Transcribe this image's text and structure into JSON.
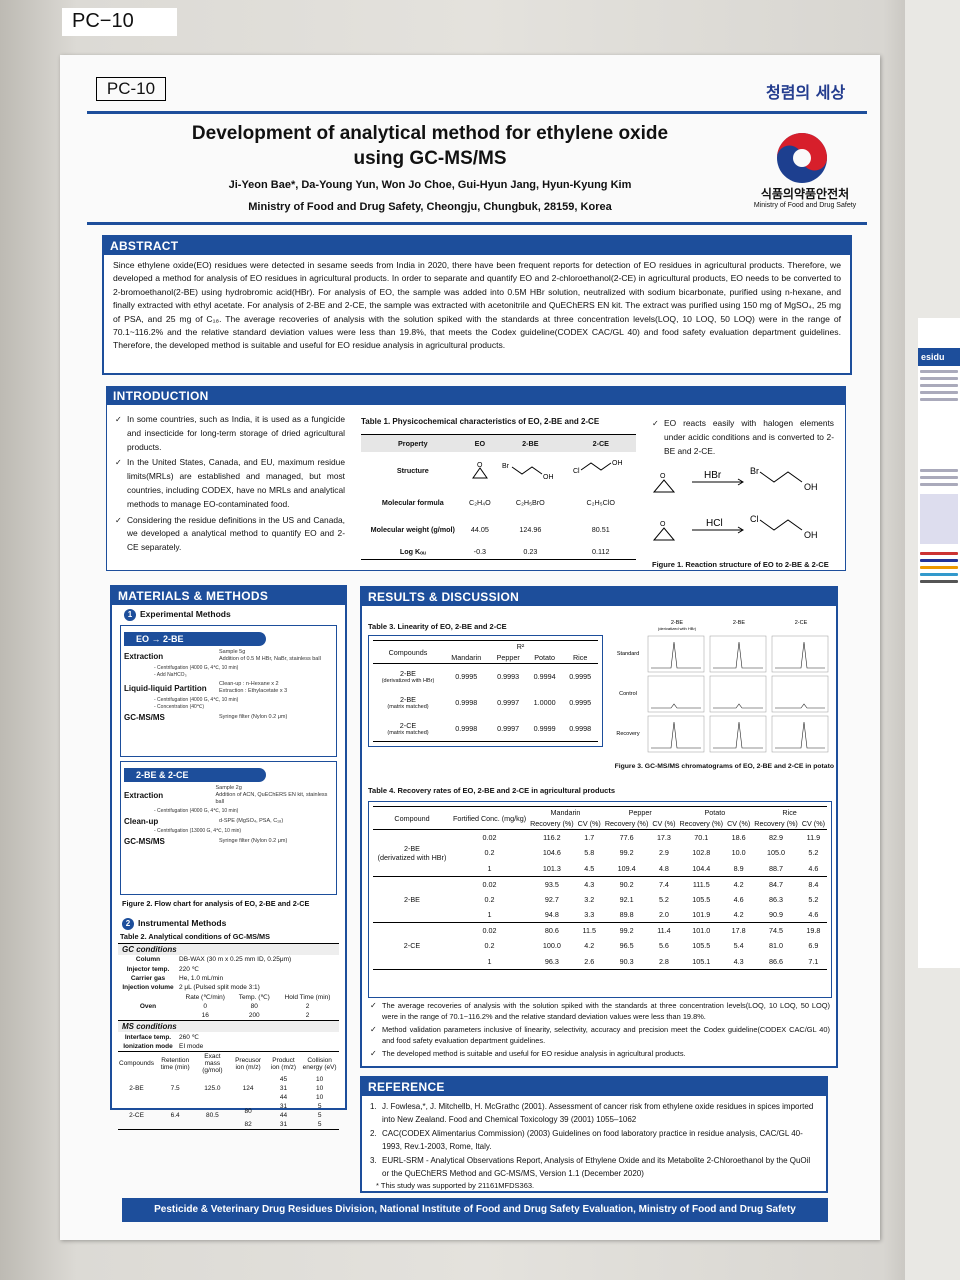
{
  "board_label": "PC−10",
  "poster": {
    "code": "PC-10",
    "brand": "청렴의 세상",
    "title_line1": "Development of analytical method for ethylene oxide",
    "title_line2": "using GC-MS/MS",
    "authors": "Ji-Yeon Bae*, Da-Young Yun, Won Jo Choe, Gui-Hyun Jang, Hyun-Kyung Kim",
    "affiliation": "Ministry of Food and Drug Safety, Cheongju, Chungbuk, 28159, Korea",
    "ministry_kr": "식품의약품안전처",
    "ministry_en": "Ministry of Food and Drug Safety"
  },
  "abstract": {
    "heading": "ABSTRACT",
    "text": "Since ethylene oxide(EO) residues were detected in sesame seeds from India in 2020, there have been frequent reports for detection of EO residues in agricultural products. Therefore, we developed a method for analysis of EO residues in agricultural products. In order to separate and quantify EO and 2-chloroethanol(2-CE) in agricultural products, EO needs to be converted to 2-bromoethanol(2-BE) using hydrobromic acid(HBr). For analysis of EO, the sample was added into 0.5M HBr solution, neutralized with sodium bicarbonate, purified using n-hexane, and finally extracted with ethyl acetate. For analysis of 2-BE and 2-CE, the sample was extracted with acetonitrile and QuEChERS EN kit. The extract was purified using 150 mg of MgSO₄, 25 mg of PSA, and 25 mg of C₁₈. The average recoveries of analysis with the solution spiked with the standards at three concentration levels(LOQ, 10 LOQ, 50 LOQ) were in the range of 70.1~116.2% and the relative standard deviation values were less than 19.8%, that meets the Codex guideline(CODEX CAC/GL 40) and food safety evaluation department guidelines. Therefore, the developed method is suitable and useful for EO residue analysis in agricultural products."
  },
  "introduction": {
    "heading": "INTRODUCTION",
    "bullets": [
      "In some countries, such as India, it is used as a fungicide and insecticide for long-term storage of dried agricultural products.",
      "In the United States, Canada, and EU, maximum residue limits(MRLs) are established and managed, but most countries, including CODEX, have no MRLs and analytical methods to manage EO-contaminated food.",
      "Considering the residue definitions in the US and Canada, we developed a analytical method to quantify EO and 2-CE separately."
    ],
    "table1_caption": "Table 1. Physicochemical characteristics of EO, 2-BE and 2-CE",
    "table1": {
      "headers": [
        "Property",
        "EO",
        "2-BE",
        "2-CE"
      ],
      "structure_label": "Structure",
      "rows": [
        [
          "Molecular formula",
          "C₂H₄O",
          "C₂H₅BrO",
          "C₂H₅ClO"
        ],
        [
          "Molecular weight (g/mol)",
          "44.05",
          "124.96",
          "80.51"
        ],
        [
          "Log Kₒᵤ",
          "-0.3",
          "0.23",
          "0.112"
        ]
      ]
    },
    "right_bullet": "EO reacts easily with halogen elements under acidic conditions and is converted to 2-BE and 2-CE.",
    "reagent_hbr": "HBr",
    "reagent_hcl": "HCl",
    "fig1_caption": "Figure 1. Reaction structure of EO to 2-BE & 2-CE"
  },
  "methods": {
    "heading": "MATERIALS & METHODS",
    "exp_heading": "Experimental Methods",
    "eo_pill": "EO → 2-BE",
    "eo_steps": [
      {
        "label": "Extraction",
        "detail": "Sample 5g / Addition of 0.5 M HBr, NaBr, stainless ball"
      },
      {
        "label": "",
        "detail": "Centrifugation (4000 G, 4℃, 10 min) / Add NaHCO₃"
      },
      {
        "label": "Liquid-liquid Partition",
        "detail": "Clean-up : n-Hexane x 2 / Extraction : Ethylacetate x 3"
      },
      {
        "label": "",
        "detail": "Centrifugation (4000 G, 4℃, 10 min) / Concentration (40℃)"
      },
      {
        "label": "GC-MS/MS",
        "detail": "Syringe filter (Nylon 0.2 μm)"
      }
    ],
    "ce_pill": "2-BE & 2-CE",
    "ce_steps": [
      {
        "label": "Extraction",
        "detail": "Sample 2g / Addition of ACN, QuEChERS EN kit, stainless ball"
      },
      {
        "label": "",
        "detail": "Centrifugation (4000 G, 4℃, 10 min)"
      },
      {
        "label": "Clean-up",
        "detail": "d-SPE (MgSO₄, PSA, C₁₈)"
      },
      {
        "label": "",
        "detail": "Centrifugation (13000 G, 4℃, 10 min)"
      },
      {
        "label": "GC-MS/MS",
        "detail": "Syringe filter (Nylon 0.2 μm)"
      }
    ],
    "fig2_caption": "Figure 2. Flow chart for analysis of EO, 2-BE and 2-CE",
    "inst_heading": "Instrumental Methods",
    "table2_caption": "Table 2. Analytical conditions of GC-MS/MS",
    "gc_heading": "GC conditions",
    "gc_rows": [
      [
        "Column",
        "DB-WAX (30 m x 0.25 mm ID, 0.25μm)"
      ],
      [
        "Injector temp.",
        "220 ℃"
      ],
      [
        "Carrier gas",
        "He, 1.0 mL/min"
      ],
      [
        "Injection volume",
        "2 μL (Pulsed split mode 3:1)"
      ]
    ],
    "oven_label": "Oven",
    "oven_headers": [
      "Rate (℃/min)",
      "Temp. (℃)",
      "Hold Time (min)"
    ],
    "oven_rows": [
      [
        "0",
        "80",
        "2"
      ],
      [
        "16",
        "200",
        "2"
      ]
    ],
    "ms_heading": "MS conditions",
    "ms_rows": [
      [
        "Interface temp.",
        "260 ℃"
      ],
      [
        "Ionization mode",
        "EI mode"
      ]
    ],
    "ms_headers": [
      "Compounds",
      "Retention time (min)",
      "Exact mass (g/mol)",
      "Precusor ion (m/z)",
      "Product ion (m/z)",
      "Collision energy (eV)"
    ],
    "ms_compounds": [
      {
        "name": "2-BE",
        "rt": "7.5",
        "mass": "125.0",
        "pre": "124",
        "products": [
          [
            "45",
            "10"
          ],
          [
            "31",
            "10"
          ],
          [
            "44",
            "10"
          ]
        ]
      },
      {
        "name": "2-CE",
        "rt": "6.4",
        "mass": "80.5",
        "pre": "80",
        "products": [
          [
            "31",
            "5"
          ],
          [
            "44",
            "5"
          ]
        ],
        "pre2": "82",
        "products2": [
          [
            "31",
            "5"
          ]
        ]
      }
    ]
  },
  "results": {
    "heading": "RESULTS & DISCUSSION",
    "table3_caption": "Table 3. Linearity of EO, 2-BE and 2-CE",
    "table3_r2": "R²",
    "table3_headers": [
      "Compounds",
      "Mandarin",
      "Pepper",
      "Potato",
      "Rice"
    ],
    "table3_rows": [
      [
        "2-BE",
        "(derivatized with HBr)",
        "0.9995",
        "0.9993",
        "0.9994",
        "0.9995"
      ],
      [
        "2-BE",
        "(matrix matched)",
        "0.9998",
        "0.9997",
        "1.0000",
        "0.9995"
      ],
      [
        "2-CE",
        "(matrix matched)",
        "0.9998",
        "0.9997",
        "0.9999",
        "0.9998"
      ]
    ],
    "fig3_cols": [
      "2-BE\n(derivatized with HBr)",
      "2-BE",
      "2-CE"
    ],
    "fig3_rows": [
      "Standard",
      "Control",
      "Recovery"
    ],
    "fig3_caption": "Figure 3. GC-MS/MS chromatograms of EO, 2-BE and 2-CE in potato",
    "table4_caption": "Table 4. Recovery rates of EO, 2-BE and 2-CE in agricultural products",
    "table4_crops": [
      "Mandarin",
      "Pepper",
      "Potato",
      "Rice"
    ],
    "table4_compound": "Compound",
    "table4_conc": "Fortified Conc. (mg/kg)",
    "table4_rec": "Recovery (%)",
    "table4_cv": "CV (%)",
    "table4_groups": [
      {
        "name": "2-BE",
        "sub": "(derivatized with HBr)",
        "rows": [
          [
            "0.02",
            "116.2",
            "1.7",
            "77.6",
            "17.3",
            "70.1",
            "18.6",
            "82.9",
            "11.9"
          ],
          [
            "0.2",
            "104.6",
            "5.8",
            "99.2",
            "2.9",
            "102.8",
            "10.0",
            "105.0",
            "5.2"
          ],
          [
            "1",
            "101.3",
            "4.5",
            "109.4",
            "4.8",
            "104.4",
            "8.9",
            "88.7",
            "4.6"
          ]
        ]
      },
      {
        "name": "2-BE",
        "sub": "",
        "rows": [
          [
            "0.02",
            "93.5",
            "4.3",
            "90.2",
            "7.4",
            "111.5",
            "4.2",
            "84.7",
            "8.4"
          ],
          [
            "0.2",
            "92.7",
            "3.2",
            "92.1",
            "5.2",
            "105.5",
            "4.6",
            "86.3",
            "5.2"
          ],
          [
            "1",
            "94.8",
            "3.3",
            "89.8",
            "2.0",
            "101.9",
            "4.2",
            "90.9",
            "4.6"
          ]
        ]
      },
      {
        "name": "2-CE",
        "sub": "",
        "rows": [
          [
            "0.02",
            "80.6",
            "11.5",
            "99.2",
            "11.4",
            "101.0",
            "17.8",
            "74.5",
            "19.8"
          ],
          [
            "0.2",
            "100.0",
            "4.2",
            "96.5",
            "5.6",
            "105.5",
            "5.4",
            "81.0",
            "6.9"
          ],
          [
            "1",
            "96.3",
            "2.6",
            "90.3",
            "2.8",
            "105.1",
            "4.3",
            "86.6",
            "7.1"
          ]
        ]
      }
    ],
    "conclusions": [
      "The average recoveries of analysis with the solution spiked with the standards at three concentration levels(LOQ, 10 LOQ, 50 LOQ) were in the range of 70.1~116.2% and the relative standard deviation values were less than 19.8%.",
      "Method validation parameters inclusive of linearity, selectivity, accuracy and precision meet the Codex guideline(CODEX CAC/GL 40) and food safety evaluation department guidelines.",
      "The developed method is suitable and useful for EO residue analysis in agricultural products."
    ]
  },
  "reference": {
    "heading": "REFERENCE",
    "items": [
      "J. Fowlesa,*, J. Mitchellb, H. McGrathc (2001). Assessment of cancer risk from ethylene oxide residues in spices imported into New Zealand. Food and Chemical Toxicology 39 (2001) 1055–1062",
      "CAC(CODEX Alimentarius Commission) (2003) Guidelines on food laboratory practice in residue analysis, CAC/GL 40-1993, Rev.1-2003, Rome, Italy.",
      "EURL-SRM - Analytical Observations Report, Analysis of Ethylene Oxide and its Metabolite 2-Chloroethanol by the QuOil or the QuEChERS Method and GC-MS/MS, Version 1.1 (December 2020)"
    ],
    "note": "* This study was supported by 21161MFDS363."
  },
  "footer": "Pesticide & Veterinary Drug Residues Division, National Institute of Food and Drug Safety Evaluation, Ministry of Food and Drug Safety",
  "next_poster": {
    "heading": "esidu"
  }
}
